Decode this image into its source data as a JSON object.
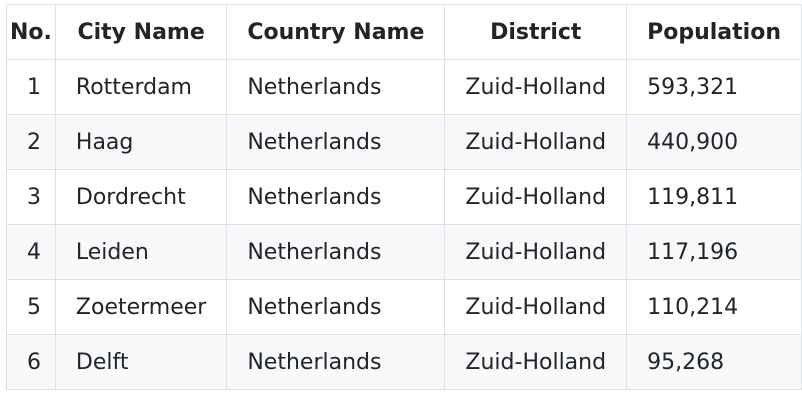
{
  "table": {
    "headers": [
      "No.",
      "City Name",
      "Country Name",
      "District",
      "Population"
    ],
    "rows": [
      [
        "1",
        "Rotterdam",
        "Netherlands",
        "Zuid-Holland",
        "593,321"
      ],
      [
        "2",
        "Haag",
        "Netherlands",
        "Zuid-Holland",
        "440,900"
      ],
      [
        "3",
        "Dordrecht",
        "Netherlands",
        "Zuid-Holland",
        "119,811"
      ],
      [
        "4",
        "Leiden",
        "Netherlands",
        "Zuid-Holland",
        "117,196"
      ],
      [
        "5",
        "Zoetermeer",
        "Netherlands",
        "Zuid-Holland",
        "110,214"
      ],
      [
        "6",
        "Delft",
        "Netherlands",
        "Zuid-Holland",
        "95,268"
      ]
    ]
  },
  "colors": {
    "border": "#dee2e6",
    "striped_row": "#f8f9fa",
    "text": "#212529"
  }
}
